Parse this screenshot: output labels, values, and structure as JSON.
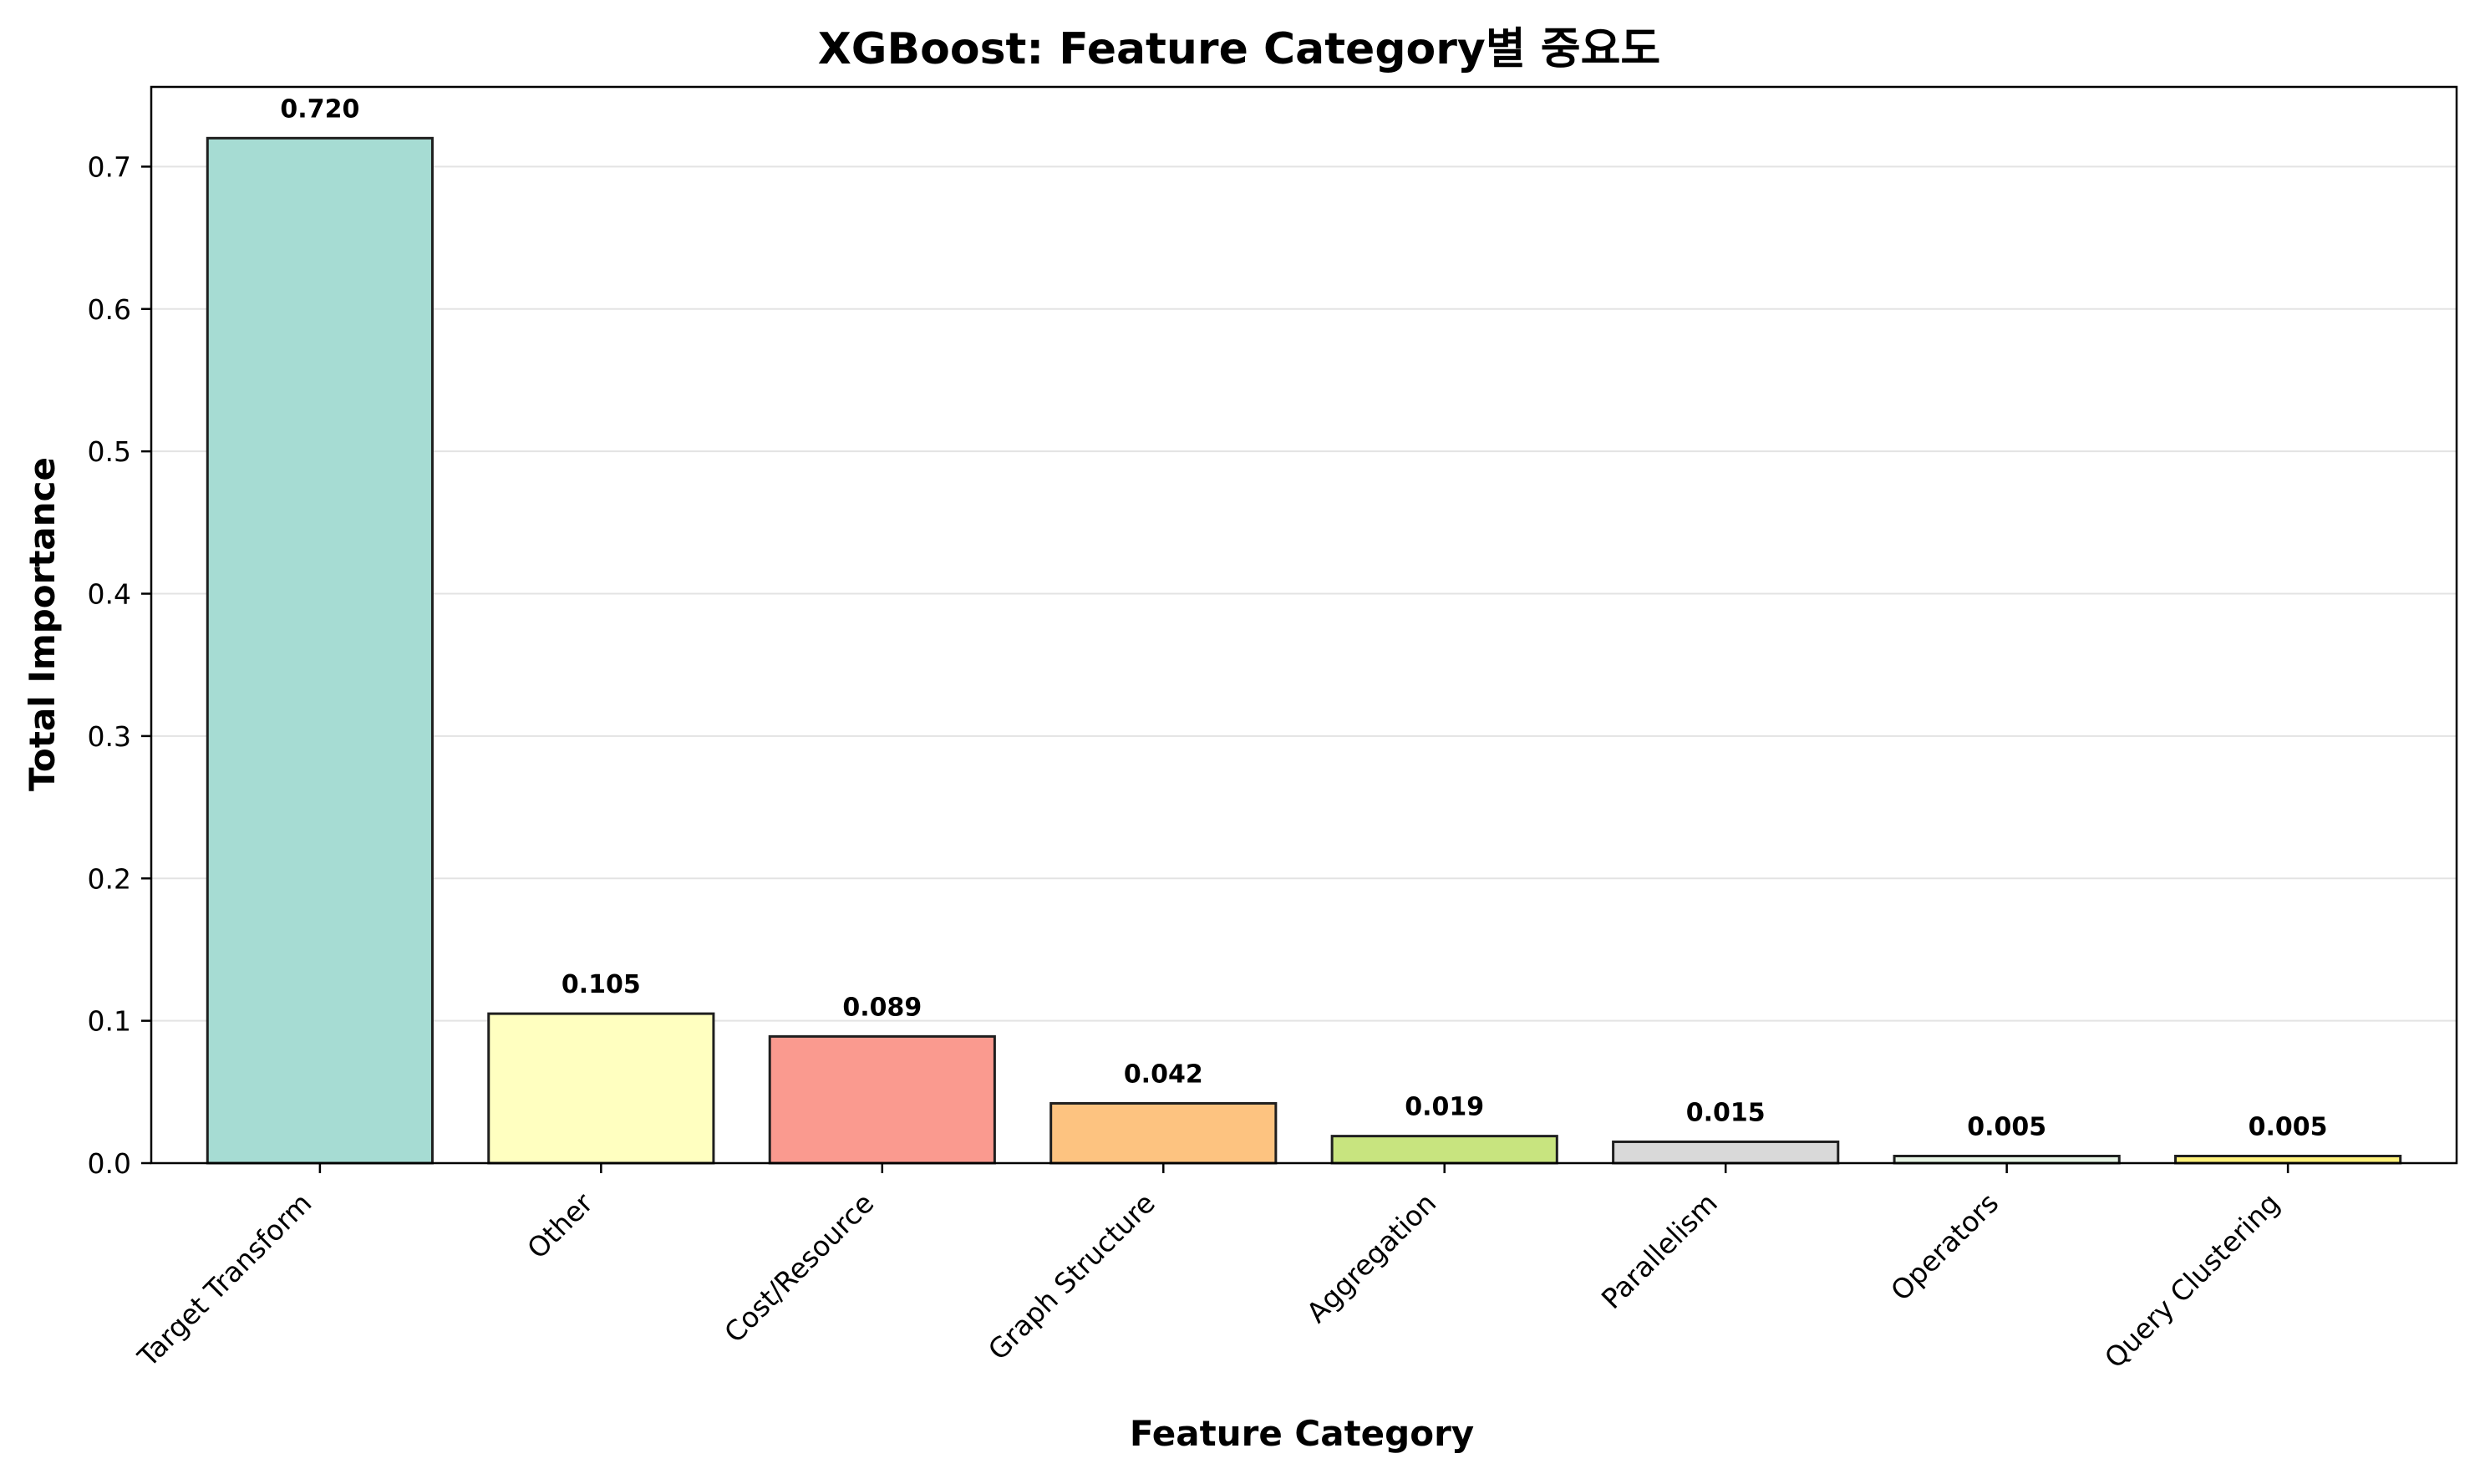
{
  "chart_data": {
    "type": "bar",
    "title": "XGBoost: Feature Category별 중요도",
    "xlabel": "Feature Category",
    "ylabel": "Total Importance",
    "categories": [
      "Target Transform",
      "Other",
      "Cost/Resource",
      "Graph Structure",
      "Aggregation",
      "Parallelism",
      "Operators",
      "Query Clustering"
    ],
    "values": [
      0.72,
      0.105,
      0.089,
      0.042,
      0.019,
      0.015,
      0.005,
      0.005
    ],
    "value_labels": [
      "0.720",
      "0.105",
      "0.089",
      "0.042",
      "0.019",
      "0.015",
      "0.005",
      "0.005"
    ],
    "colors": [
      "#a6dcd3",
      "#ffffc0",
      "#fa9a8f",
      "#fdc380",
      "#c8e47f",
      "#d9d9d9",
      "#e6f4e4",
      "#fff27a"
    ],
    "edge_color": "#1f1f1f",
    "ylim": [
      0,
      0.756
    ],
    "yticks": [
      0.0,
      0.1,
      0.2,
      0.3,
      0.4,
      0.5,
      0.6,
      0.7
    ],
    "ytick_labels": [
      "0.0",
      "0.1",
      "0.2",
      "0.3",
      "0.4",
      "0.5",
      "0.6",
      "0.7"
    ],
    "grid": "y",
    "legend": "none"
  }
}
